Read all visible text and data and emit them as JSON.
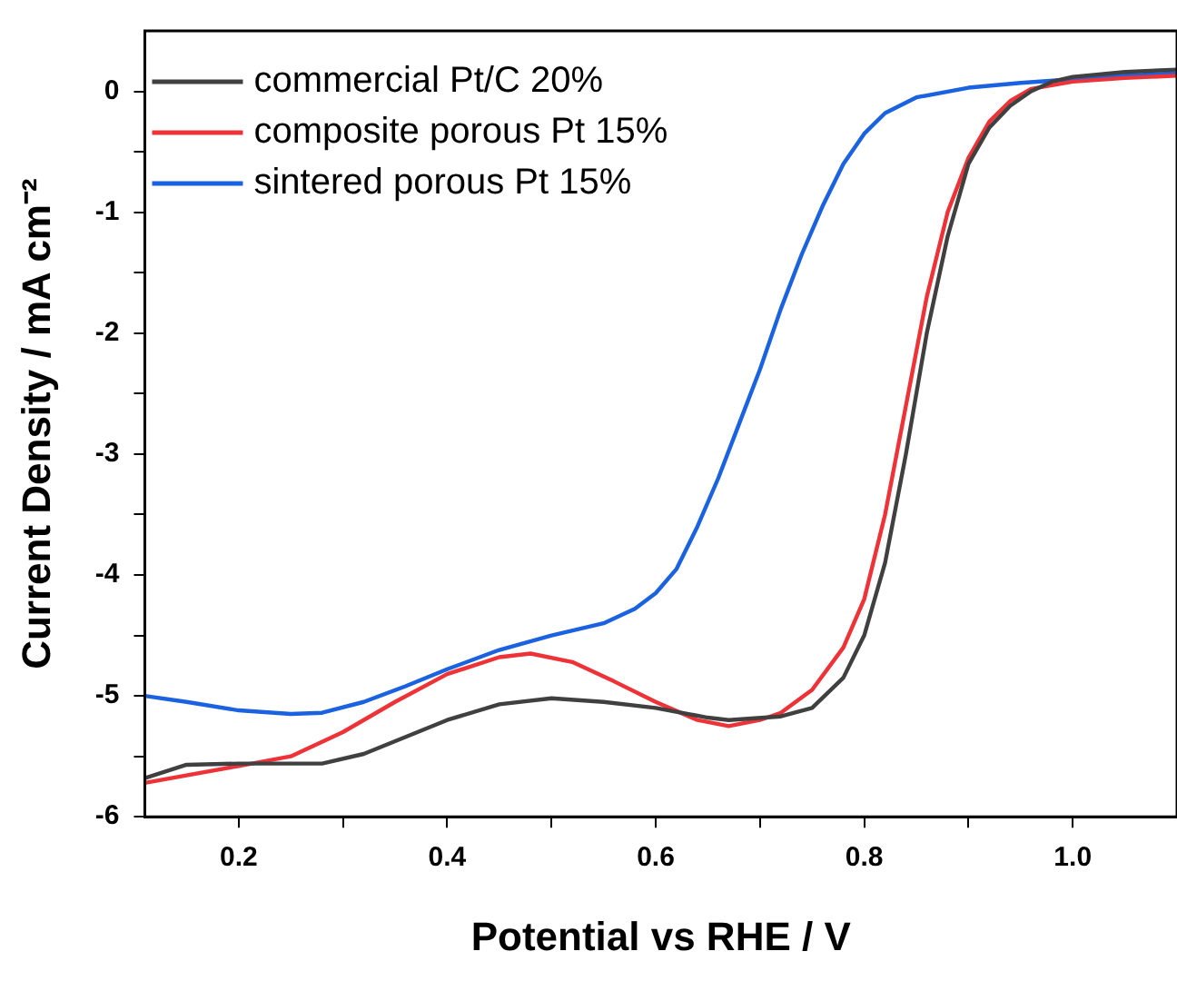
{
  "chart_data": {
    "type": "line",
    "xlabel": "Potential vs RHE / V",
    "ylabel": "Current Density / mA cm⁻²",
    "xlim": [
      0.11,
      1.1
    ],
    "ylim": [
      -6,
      0.5
    ],
    "xticks": [
      0.2,
      {
        "value": 0.3,
        "label": null
      },
      0.4,
      {
        "value": 0.5,
        "label": null
      },
      0.6,
      {
        "value": 0.7,
        "label": null
      },
      0.8,
      {
        "value": 0.9,
        "label": null
      },
      {
        "value": 1.0,
        "label": "1.0"
      }
    ],
    "yticks": [
      -6,
      {
        "value": -5.5,
        "label": null
      },
      -5,
      {
        "value": -4.5,
        "label": null
      },
      -4,
      {
        "value": -3.5,
        "label": null
      },
      -3,
      {
        "value": -2.5,
        "label": null
      },
      -2,
      {
        "value": -1.5,
        "label": null
      },
      -1,
      {
        "value": -0.5,
        "label": null
      },
      0
    ],
    "grid": false,
    "legend": "top left",
    "marker": "none",
    "line_style": "solid",
    "series": [
      {
        "name": "commercial Pt/C 20%",
        "color": "#404040",
        "x": [
          0.11,
          0.15,
          0.2,
          0.28,
          0.32,
          0.4,
          0.45,
          0.5,
          0.55,
          0.6,
          0.65,
          0.67,
          0.72,
          0.75,
          0.78,
          0.8,
          0.82,
          0.84,
          0.86,
          0.88,
          0.9,
          0.92,
          0.94,
          0.96,
          0.98,
          1.0,
          1.05,
          1.1
        ],
        "values": [
          -5.68,
          -5.57,
          -5.56,
          -5.56,
          -5.48,
          -5.2,
          -5.07,
          -5.02,
          -5.05,
          -5.1,
          -5.18,
          -5.2,
          -5.17,
          -5.1,
          -4.85,
          -4.5,
          -3.9,
          -3.0,
          -2.0,
          -1.2,
          -0.6,
          -0.3,
          -0.12,
          0.0,
          0.08,
          0.12,
          0.16,
          0.18
        ]
      },
      {
        "name": "composite porous Pt 15%",
        "color": "#ee3338",
        "x": [
          0.11,
          0.2,
          0.25,
          0.3,
          0.35,
          0.4,
          0.45,
          0.48,
          0.52,
          0.56,
          0.6,
          0.64,
          0.67,
          0.7,
          0.72,
          0.75,
          0.78,
          0.8,
          0.82,
          0.84,
          0.86,
          0.88,
          0.9,
          0.92,
          0.94,
          0.96,
          1.0,
          1.05,
          1.1
        ],
        "values": [
          -5.72,
          -5.58,
          -5.5,
          -5.3,
          -5.05,
          -4.82,
          -4.68,
          -4.65,
          -4.72,
          -4.88,
          -5.05,
          -5.2,
          -5.25,
          -5.2,
          -5.14,
          -4.95,
          -4.6,
          -4.2,
          -3.5,
          -2.6,
          -1.7,
          -1.0,
          -0.55,
          -0.25,
          -0.08,
          0.02,
          0.08,
          0.11,
          0.13
        ]
      },
      {
        "name": "sintered porous Pt 15%",
        "color": "#1a62e0",
        "x": [
          0.11,
          0.15,
          0.2,
          0.25,
          0.28,
          0.32,
          0.36,
          0.4,
          0.45,
          0.5,
          0.55,
          0.58,
          0.6,
          0.62,
          0.64,
          0.66,
          0.68,
          0.7,
          0.72,
          0.74,
          0.76,
          0.78,
          0.8,
          0.82,
          0.85,
          0.9,
          0.95,
          1.0,
          1.05,
          1.1
        ],
        "values": [
          -5.0,
          -5.05,
          -5.12,
          -5.15,
          -5.14,
          -5.05,
          -4.92,
          -4.78,
          -4.62,
          -4.5,
          -4.4,
          -4.28,
          -4.15,
          -3.95,
          -3.6,
          -3.2,
          -2.75,
          -2.3,
          -1.8,
          -1.35,
          -0.95,
          -0.6,
          -0.35,
          -0.18,
          -0.05,
          0.03,
          0.07,
          0.1,
          0.13,
          0.15
        ]
      }
    ]
  }
}
